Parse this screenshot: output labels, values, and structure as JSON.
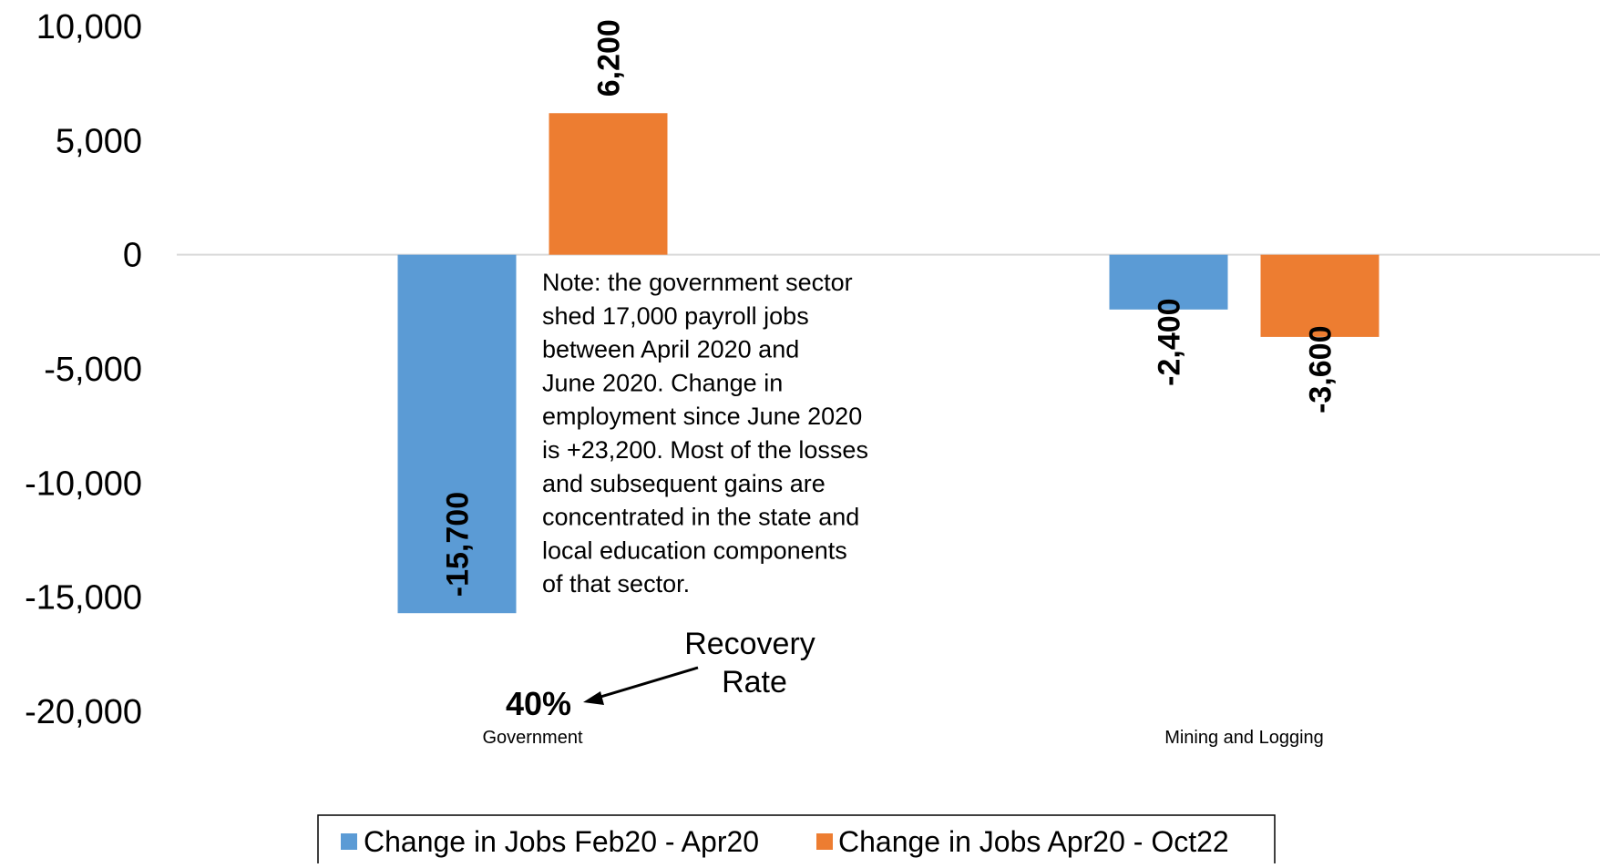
{
  "chart_data": {
    "type": "bar",
    "categories": [
      "Government",
      "Mining and Logging"
    ],
    "series": [
      {
        "name": "Change in Jobs Feb20 - Apr20",
        "color": "#5b9bd5",
        "values": [
          -15700,
          -2400
        ],
        "labels": [
          "-15,700",
          "-2,400"
        ]
      },
      {
        "name": "Change in Jobs Apr20 - Oct22",
        "color": "#ed7d31",
        "values": [
          6200,
          -3600
        ],
        "labels": [
          "6,200",
          "-3,600"
        ]
      }
    ],
    "ylim": [
      -20000,
      10000
    ],
    "yticks": [
      10000,
      5000,
      0,
      -5000,
      -10000,
      -15000,
      -20000
    ],
    "ytick_labels": [
      "10,000",
      "5,000",
      "0",
      "-5,000",
      "-10,000",
      "-15,000",
      "-20,000"
    ],
    "legend_position": "bottom",
    "grid": false
  },
  "annotations": {
    "note_lines": [
      "Note: the government sector",
      "shed 17,000 payroll jobs",
      "between April 2020 and",
      "June 2020. Change in",
      "employment since June 2020",
      "is +23,200. Most of the losses",
      "and subsequent gains are",
      "concentrated in the state and",
      "local education components",
      "of that sector."
    ],
    "recovery_label_line1": "Recovery",
    "recovery_label_line2": "Rate",
    "recovery_value": "40%"
  }
}
